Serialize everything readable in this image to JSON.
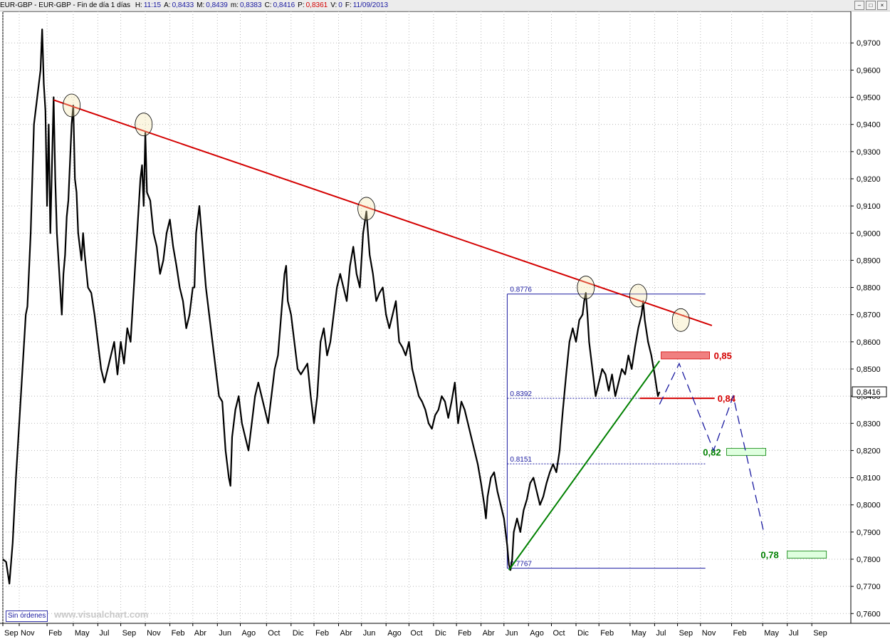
{
  "window": {
    "symbol": "EUR-GBP - EUR-GBP - Fin de día 1 días",
    "fields": [
      {
        "label": "H:",
        "value": "11:15",
        "color": "blue"
      },
      {
        "label": "A:",
        "value": "0,8433",
        "color": "blue"
      },
      {
        "label": "M:",
        "value": "0,8439",
        "color": "blue"
      },
      {
        "label": "m:",
        "value": "0,8383",
        "color": "blue"
      },
      {
        "label": "C:",
        "value": "0,8416",
        "color": "blue"
      },
      {
        "label": "P:",
        "value": "0,8361",
        "color": "red"
      },
      {
        "label": "V:",
        "value": "0",
        "color": "blue"
      },
      {
        "label": "F:",
        "value": "11/09/2013",
        "color": "blue"
      }
    ],
    "buttons": [
      "–",
      "□",
      "×"
    ]
  },
  "status": {
    "orders": "Sin órdenes",
    "watermark": "www.visualchart.com"
  },
  "chart_data": {
    "type": "line",
    "series": [
      {
        "name": "EUR-GBP",
        "color": "#000000"
      }
    ],
    "ylim": [
      0.7564,
      0.9816
    ],
    "price_axis": {
      "ticks": [
        0.97,
        0.96,
        0.95,
        0.94,
        0.93,
        0.92,
        0.91,
        0.9,
        0.89,
        0.88,
        0.87,
        0.86,
        0.85,
        0.84,
        0.83,
        0.82,
        0.81,
        0.8,
        0.79,
        0.78,
        0.77,
        0.76
      ],
      "labels": [
        "0,9700",
        "0,9600",
        "0,9500",
        "0,9400",
        "0,9300",
        "0,9200",
        "0,9100",
        "0,9000",
        "0,8900",
        "0,8800",
        "0,8700",
        "0,8600",
        "0,8500",
        "0,8400",
        "0,8300",
        "0,8200",
        "0,8100",
        "0,8000",
        "0,7900",
        "0,7800",
        "0,7700",
        "0,7600"
      ],
      "current_label": "0,8416",
      "current_value": 0.8416
    },
    "time_axis": {
      "labels": [
        "Sep",
        "Nov",
        "Feb",
        "May",
        "Jul",
        "Sep",
        "Nov",
        "Feb",
        "Abr",
        "Jun",
        "Ago",
        "Oct",
        "Dic",
        "Feb",
        "Abr",
        "Jun",
        "Ago",
        "Oct",
        "Dic",
        "Feb",
        "Abr",
        "Jun",
        "Ago",
        "Oct",
        "Dic",
        "Feb",
        "May",
        "Jul",
        "Sep",
        "Nov",
        "Feb",
        "May",
        "Jul",
        "Sep"
      ],
      "bar_index": [
        0,
        10,
        27,
        43,
        58,
        72,
        87,
        102,
        116,
        131,
        145,
        161,
        176,
        190,
        205,
        219,
        234,
        248,
        263,
        277,
        292,
        306,
        321,
        335,
        350,
        364,
        383,
        398,
        412,
        426,
        445,
        464,
        479,
        494
      ]
    },
    "price_path": [
      [
        0,
        0.78
      ],
      [
        2,
        0.779
      ],
      [
        4,
        0.771
      ],
      [
        6,
        0.786
      ],
      [
        8,
        0.81
      ],
      [
        10,
        0.83
      ],
      [
        12,
        0.85
      ],
      [
        14,
        0.87
      ],
      [
        15,
        0.873
      ],
      [
        17,
        0.9
      ],
      [
        19,
        0.94
      ],
      [
        21,
        0.95
      ],
      [
        23,
        0.96
      ],
      [
        24,
        0.975
      ],
      [
        25,
        0.955
      ],
      [
        26,
        0.945
      ],
      [
        27,
        0.91
      ],
      [
        28,
        0.94
      ],
      [
        29,
        0.9
      ],
      [
        31,
        0.95
      ],
      [
        32,
        0.92
      ],
      [
        33,
        0.9
      ],
      [
        35,
        0.88
      ],
      [
        36,
        0.87
      ],
      [
        37,
        0.885
      ],
      [
        38,
        0.892
      ],
      [
        39,
        0.906
      ],
      [
        40,
        0.912
      ],
      [
        41,
        0.926
      ],
      [
        42,
        0.94
      ],
      [
        43,
        0.947
      ],
      [
        44,
        0.92
      ],
      [
        45,
        0.915
      ],
      [
        46,
        0.9
      ],
      [
        48,
        0.89
      ],
      [
        49,
        0.9
      ],
      [
        50,
        0.892
      ],
      [
        52,
        0.88
      ],
      [
        54,
        0.878
      ],
      [
        56,
        0.87
      ],
      [
        58,
        0.86
      ],
      [
        60,
        0.85
      ],
      [
        62,
        0.845
      ],
      [
        64,
        0.85
      ],
      [
        66,
        0.855
      ],
      [
        68,
        0.86
      ],
      [
        70,
        0.848
      ],
      [
        72,
        0.86
      ],
      [
        74,
        0.852
      ],
      [
        76,
        0.865
      ],
      [
        78,
        0.86
      ],
      [
        80,
        0.88
      ],
      [
        82,
        0.9
      ],
      [
        84,
        0.92
      ],
      [
        85,
        0.925
      ],
      [
        86,
        0.91
      ],
      [
        87,
        0.937
      ],
      [
        88,
        0.915
      ],
      [
        90,
        0.912
      ],
      [
        92,
        0.9
      ],
      [
        94,
        0.895
      ],
      [
        96,
        0.885
      ],
      [
        98,
        0.89
      ],
      [
        100,
        0.9
      ],
      [
        102,
        0.905
      ],
      [
        104,
        0.895
      ],
      [
        106,
        0.888
      ],
      [
        108,
        0.88
      ],
      [
        110,
        0.875
      ],
      [
        112,
        0.865
      ],
      [
        114,
        0.87
      ],
      [
        116,
        0.88
      ],
      [
        117,
        0.88
      ],
      [
        118,
        0.9
      ],
      [
        120,
        0.91
      ],
      [
        122,
        0.895
      ],
      [
        124,
        0.88
      ],
      [
        126,
        0.87
      ],
      [
        128,
        0.86
      ],
      [
        130,
        0.85
      ],
      [
        132,
        0.84
      ],
      [
        134,
        0.838
      ],
      [
        136,
        0.82
      ],
      [
        138,
        0.81
      ],
      [
        139,
        0.807
      ],
      [
        140,
        0.825
      ],
      [
        142,
        0.835
      ],
      [
        144,
        0.84
      ],
      [
        146,
        0.83
      ],
      [
        148,
        0.825
      ],
      [
        150,
        0.82
      ],
      [
        152,
        0.83
      ],
      [
        154,
        0.84
      ],
      [
        156,
        0.845
      ],
      [
        158,
        0.84
      ],
      [
        160,
        0.835
      ],
      [
        162,
        0.83
      ],
      [
        164,
        0.84
      ],
      [
        166,
        0.85
      ],
      [
        168,
        0.855
      ],
      [
        170,
        0.87
      ],
      [
        172,
        0.885
      ],
      [
        173,
        0.888
      ],
      [
        174,
        0.875
      ],
      [
        176,
        0.87
      ],
      [
        178,
        0.86
      ],
      [
        180,
        0.85
      ],
      [
        182,
        0.848
      ],
      [
        184,
        0.85
      ],
      [
        186,
        0.852
      ],
      [
        188,
        0.84
      ],
      [
        190,
        0.83
      ],
      [
        192,
        0.84
      ],
      [
        194,
        0.86
      ],
      [
        196,
        0.865
      ],
      [
        198,
        0.855
      ],
      [
        200,
        0.86
      ],
      [
        202,
        0.87
      ],
      [
        204,
        0.88
      ],
      [
        206,
        0.885
      ],
      [
        208,
        0.88
      ],
      [
        210,
        0.875
      ],
      [
        212,
        0.888
      ],
      [
        214,
        0.895
      ],
      [
        216,
        0.885
      ],
      [
        218,
        0.88
      ],
      [
        220,
        0.9
      ],
      [
        222,
        0.908
      ],
      [
        224,
        0.892
      ],
      [
        226,
        0.885
      ],
      [
        228,
        0.875
      ],
      [
        230,
        0.878
      ],
      [
        232,
        0.88
      ],
      [
        234,
        0.87
      ],
      [
        236,
        0.865
      ],
      [
        238,
        0.87
      ],
      [
        240,
        0.875
      ],
      [
        242,
        0.86
      ],
      [
        244,
        0.858
      ],
      [
        246,
        0.855
      ],
      [
        248,
        0.86
      ],
      [
        250,
        0.85
      ],
      [
        252,
        0.845
      ],
      [
        254,
        0.84
      ],
      [
        256,
        0.838
      ],
      [
        258,
        0.835
      ],
      [
        260,
        0.83
      ],
      [
        262,
        0.828
      ],
      [
        264,
        0.833
      ],
      [
        266,
        0.835
      ],
      [
        268,
        0.84
      ],
      [
        270,
        0.838
      ],
      [
        272,
        0.832
      ],
      [
        274,
        0.838
      ],
      [
        276,
        0.845
      ],
      [
        278,
        0.83
      ],
      [
        280,
        0.838
      ],
      [
        282,
        0.835
      ],
      [
        284,
        0.83
      ],
      [
        286,
        0.825
      ],
      [
        288,
        0.82
      ],
      [
        290,
        0.815
      ],
      [
        292,
        0.808
      ],
      [
        294,
        0.8
      ],
      [
        295,
        0.795
      ],
      [
        296,
        0.803
      ],
      [
        298,
        0.81
      ],
      [
        300,
        0.812
      ],
      [
        302,
        0.805
      ],
      [
        304,
        0.8
      ],
      [
        306,
        0.795
      ],
      [
        308,
        0.785
      ],
      [
        309,
        0.778
      ],
      [
        310,
        0.776
      ],
      [
        311,
        0.78
      ],
      [
        312,
        0.79
      ],
      [
        314,
        0.795
      ],
      [
        316,
        0.79
      ],
      [
        318,
        0.798
      ],
      [
        320,
        0.802
      ],
      [
        322,
        0.808
      ],
      [
        324,
        0.81
      ],
      [
        326,
        0.805
      ],
      [
        328,
        0.8
      ],
      [
        330,
        0.803
      ],
      [
        332,
        0.808
      ],
      [
        334,
        0.812
      ],
      [
        336,
        0.815
      ],
      [
        338,
        0.812
      ],
      [
        340,
        0.82
      ],
      [
        341,
        0.828
      ],
      [
        342,
        0.835
      ],
      [
        344,
        0.848
      ],
      [
        346,
        0.86
      ],
      [
        348,
        0.865
      ],
      [
        350,
        0.86
      ],
      [
        352,
        0.868
      ],
      [
        354,
        0.87
      ],
      [
        355,
        0.875
      ],
      [
        356,
        0.878
      ],
      [
        357,
        0.87
      ],
      [
        358,
        0.86
      ],
      [
        360,
        0.85
      ],
      [
        362,
        0.84
      ],
      [
        364,
        0.845
      ],
      [
        366,
        0.85
      ],
      [
        368,
        0.848
      ],
      [
        370,
        0.842
      ],
      [
        372,
        0.848
      ],
      [
        374,
        0.84
      ],
      [
        376,
        0.845
      ],
      [
        378,
        0.85
      ],
      [
        380,
        0.848
      ],
      [
        382,
        0.855
      ],
      [
        384,
        0.85
      ],
      [
        386,
        0.858
      ],
      [
        388,
        0.865
      ],
      [
        390,
        0.87
      ],
      [
        391,
        0.875
      ],
      [
        392,
        0.868
      ],
      [
        394,
        0.86
      ],
      [
        396,
        0.855
      ],
      [
        398,
        0.848
      ],
      [
        400,
        0.84
      ],
      [
        401,
        0.8416
      ]
    ],
    "trendlines": [
      {
        "name": "resistance",
        "color": "#d40000",
        "from": [
          31,
          0.949
        ],
        "to": [
          433,
          0.866
        ]
      },
      {
        "name": "support",
        "color": "#008000",
        "from": [
          309,
          0.776
        ],
        "to": [
          401,
          0.853
        ]
      }
    ],
    "touch_points": [
      [
        42,
        0.947
      ],
      [
        86,
        0.94
      ],
      [
        222,
        0.909
      ],
      [
        356,
        0.88
      ],
      [
        388,
        0.877
      ],
      [
        414,
        0.868
      ]
    ],
    "fib_box": {
      "from_index": 308,
      "to_index": 429,
      "high": 0.8776,
      "low": 0.7767
    },
    "levels": [
      {
        "value": 0.8776,
        "label": "0.8776",
        "style": "solid"
      },
      {
        "value": 0.8392,
        "label": "0.8392",
        "style": "dotted"
      },
      {
        "value": 0.8151,
        "label": "0.8151",
        "style": "dotted"
      },
      {
        "value": 0.7767,
        "label": "0.7767",
        "style": "solid"
      }
    ],
    "targets": [
      {
        "label": "0,85",
        "value": 0.855,
        "color": "#d40000",
        "fill": "#f08080"
      },
      {
        "label": "0,84",
        "value": 0.8392,
        "color": "#d40000",
        "fill": null
      },
      {
        "label": "0,82",
        "value": 0.8195,
        "color": "#008000",
        "fill": "#dfffdf"
      },
      {
        "label": "0,78",
        "value": 0.7817,
        "color": "#008000",
        "fill": "#dfffdf"
      }
    ],
    "projection": [
      [
        401,
        0.837
      ],
      [
        413,
        0.852
      ],
      [
        434,
        0.82
      ],
      [
        446,
        0.84
      ],
      [
        465,
        0.789
      ]
    ]
  }
}
